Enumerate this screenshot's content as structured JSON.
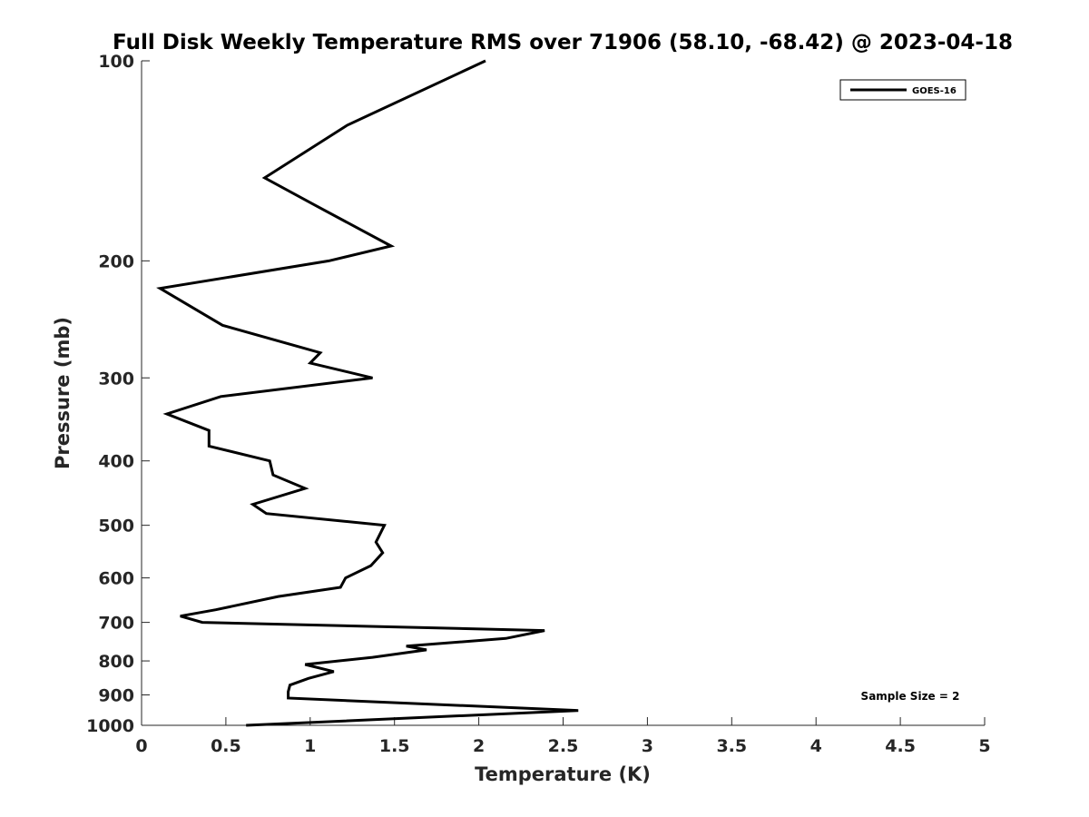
{
  "chart_data": {
    "type": "line",
    "title": "Full Disk Weekly Temperature RMS over 71906 (58.10, -68.42) @ 2023-04-18",
    "xlabel": "Temperature (K)",
    "ylabel": "Pressure (mb)",
    "xlim": [
      0,
      5
    ],
    "ylim": [
      100,
      1000
    ],
    "y_scale": "log",
    "y_reversed": true,
    "x_ticks": [
      "0",
      "0.5",
      "1",
      "1.5",
      "2",
      "2.5",
      "3",
      "3.5",
      "4",
      "4.5",
      "5"
    ],
    "y_ticks": [
      "100",
      "200",
      "300",
      "400",
      "500",
      "600",
      "700",
      "800",
      "900",
      "1000"
    ],
    "grid": false,
    "legend_position": "top-right",
    "series": [
      {
        "name": "GOES-16",
        "color": "#000000",
        "x": [
          2.04,
          1.22,
          0.73,
          1.03,
          1.48,
          1.11,
          0.11,
          0.48,
          1.06,
          1.0,
          1.37,
          0.47,
          0.15,
          0.4,
          0.4,
          0.76,
          0.78,
          0.97,
          0.66,
          0.74,
          1.44,
          1.39,
          1.43,
          1.36,
          1.21,
          1.18,
          0.81,
          0.44,
          0.23,
          0.36,
          2.39,
          2.16,
          1.57,
          1.69,
          1.37,
          0.97,
          1.14,
          0.99,
          0.88,
          0.87,
          0.87,
          2.59,
          0.62
        ],
        "y": [
          100,
          125,
          150,
          165,
          190,
          200,
          220,
          250,
          275,
          285,
          300,
          320,
          340,
          360,
          380,
          400,
          420,
          440,
          465,
          480,
          500,
          530,
          550,
          575,
          600,
          620,
          640,
          670,
          685,
          700,
          720,
          740,
          760,
          770,
          790,
          810,
          830,
          850,
          870,
          890,
          910,
          950,
          1000
        ]
      }
    ],
    "annotations": [
      {
        "text": "Sample Size = 2"
      }
    ]
  }
}
